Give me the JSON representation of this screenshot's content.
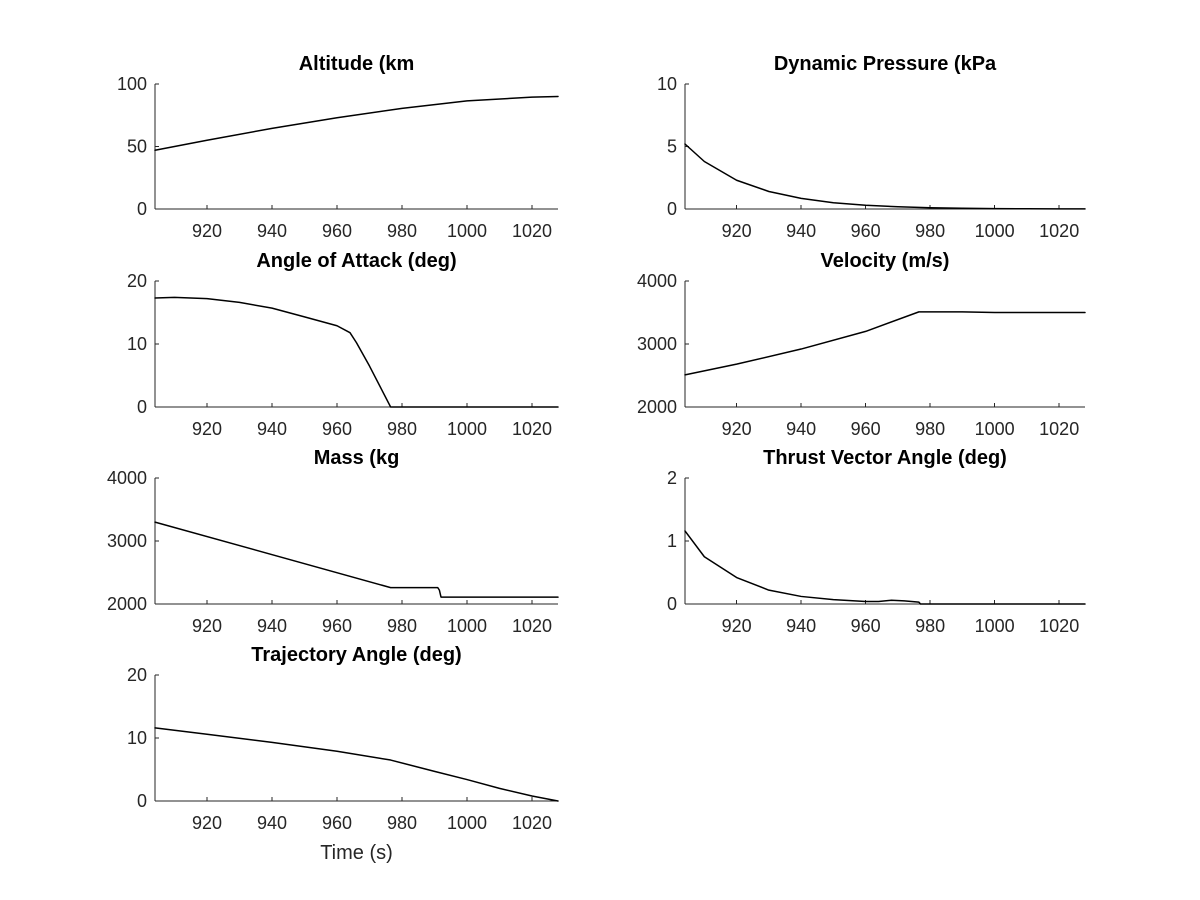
{
  "figure": {
    "background": "#ffffff",
    "axis_color": "#262626",
    "line_color": "#000000"
  },
  "chart_data": [
    {
      "type": "line",
      "title": "Altitude (km",
      "xlabel": "",
      "ylabel": "",
      "xlim": [
        904,
        1028
      ],
      "ylim": [
        0,
        100
      ],
      "xticks": [
        920,
        940,
        960,
        980,
        1000,
        1020
      ],
      "yticks": [
        0,
        50,
        100
      ],
      "grid": false,
      "series": [
        {
          "x": [
            904,
            920,
            940,
            960,
            980,
            1000,
            1020,
            1028
          ],
          "y": [
            47,
            55,
            64.5,
            73,
            80.5,
            86.5,
            89.5,
            90
          ]
        }
      ]
    },
    {
      "type": "line",
      "title": "Dynamic Pressure (kPa",
      "xlabel": "",
      "ylabel": "",
      "xlim": [
        904,
        1028
      ],
      "ylim": [
        0,
        10
      ],
      "xticks": [
        920,
        940,
        960,
        980,
        1000,
        1020
      ],
      "yticks": [
        0,
        5,
        10
      ],
      "grid": false,
      "series": [
        {
          "x": [
            904,
            910,
            920,
            930,
            940,
            950,
            960,
            970,
            980,
            990,
            1000,
            1010,
            1020,
            1028
          ],
          "y": [
            5.2,
            3.8,
            2.3,
            1.4,
            0.85,
            0.5,
            0.3,
            0.18,
            0.1,
            0.06,
            0.03,
            0.02,
            0.01,
            0.01
          ]
        }
      ]
    },
    {
      "type": "line",
      "title": "Angle of Attack (deg)",
      "xlabel": "",
      "ylabel": "",
      "xlim": [
        904,
        1028
      ],
      "ylim": [
        0,
        20
      ],
      "xticks": [
        920,
        940,
        960,
        980,
        1000,
        1020
      ],
      "yticks": [
        0,
        10,
        20
      ],
      "grid": false,
      "series": [
        {
          "x": [
            904,
            910,
            920,
            930,
            940,
            950,
            960,
            964,
            966,
            970,
            976.5,
            980,
            1000,
            1028
          ],
          "y": [
            17.3,
            17.4,
            17.2,
            16.6,
            15.7,
            14.3,
            12.9,
            11.8,
            10.2,
            6.5,
            0,
            0,
            0,
            0
          ]
        }
      ]
    },
    {
      "type": "line",
      "title": "Velocity (m/s)",
      "xlabel": "",
      "ylabel": "",
      "xlim": [
        904,
        1028
      ],
      "ylim": [
        2000,
        4000
      ],
      "xticks": [
        920,
        940,
        960,
        980,
        1000,
        1020
      ],
      "yticks": [
        2000,
        3000,
        4000
      ],
      "grid": false,
      "series": [
        {
          "x": [
            904,
            920,
            940,
            960,
            976.5,
            990,
            1000,
            1028
          ],
          "y": [
            2510,
            2680,
            2920,
            3200,
            3510,
            3510,
            3500,
            3500
          ]
        }
      ]
    },
    {
      "type": "line",
      "title": "Mass (kg",
      "xlabel": "",
      "ylabel": "",
      "xlim": [
        904,
        1028
      ],
      "ylim": [
        2000,
        4000
      ],
      "xticks": [
        920,
        940,
        960,
        980,
        1000,
        1020
      ],
      "yticks": [
        2000,
        3000,
        4000
      ],
      "grid": false,
      "series": [
        {
          "x": [
            904,
            976.5,
            991,
            991.5,
            992,
            1028
          ],
          "y": [
            3300,
            2260,
            2260,
            2220,
            2110,
            2110
          ]
        }
      ]
    },
    {
      "type": "line",
      "title": "Thrust Vector Angle (deg)",
      "xlabel": "",
      "ylabel": "",
      "xlim": [
        904,
        1028
      ],
      "ylim": [
        0,
        2
      ],
      "xticks": [
        920,
        940,
        960,
        980,
        1000,
        1020
      ],
      "yticks": [
        0,
        1,
        2
      ],
      "grid": false,
      "series": [
        {
          "x": [
            904,
            910,
            920,
            930,
            940,
            950,
            960,
            964,
            968,
            972,
            976.5,
            977,
            990,
            1028
          ],
          "y": [
            1.16,
            0.75,
            0.42,
            0.22,
            0.12,
            0.07,
            0.04,
            0.04,
            0.06,
            0.05,
            0.03,
            0.0,
            0.0,
            0.0
          ]
        }
      ]
    },
    {
      "type": "line",
      "title": "Trajectory Angle (deg)",
      "xlabel": "Time (s)",
      "ylabel": "",
      "xlim": [
        904,
        1028
      ],
      "ylim": [
        0,
        20
      ],
      "xticks": [
        920,
        940,
        960,
        980,
        1000,
        1020
      ],
      "yticks": [
        0,
        10,
        20
      ],
      "grid": false,
      "series": [
        {
          "x": [
            904,
            920,
            940,
            960,
            976.5,
            990,
            1000,
            1010,
            1020,
            1028
          ],
          "y": [
            11.6,
            10.6,
            9.3,
            7.9,
            6.5,
            4.7,
            3.4,
            2.0,
            0.8,
            0
          ]
        }
      ]
    }
  ]
}
